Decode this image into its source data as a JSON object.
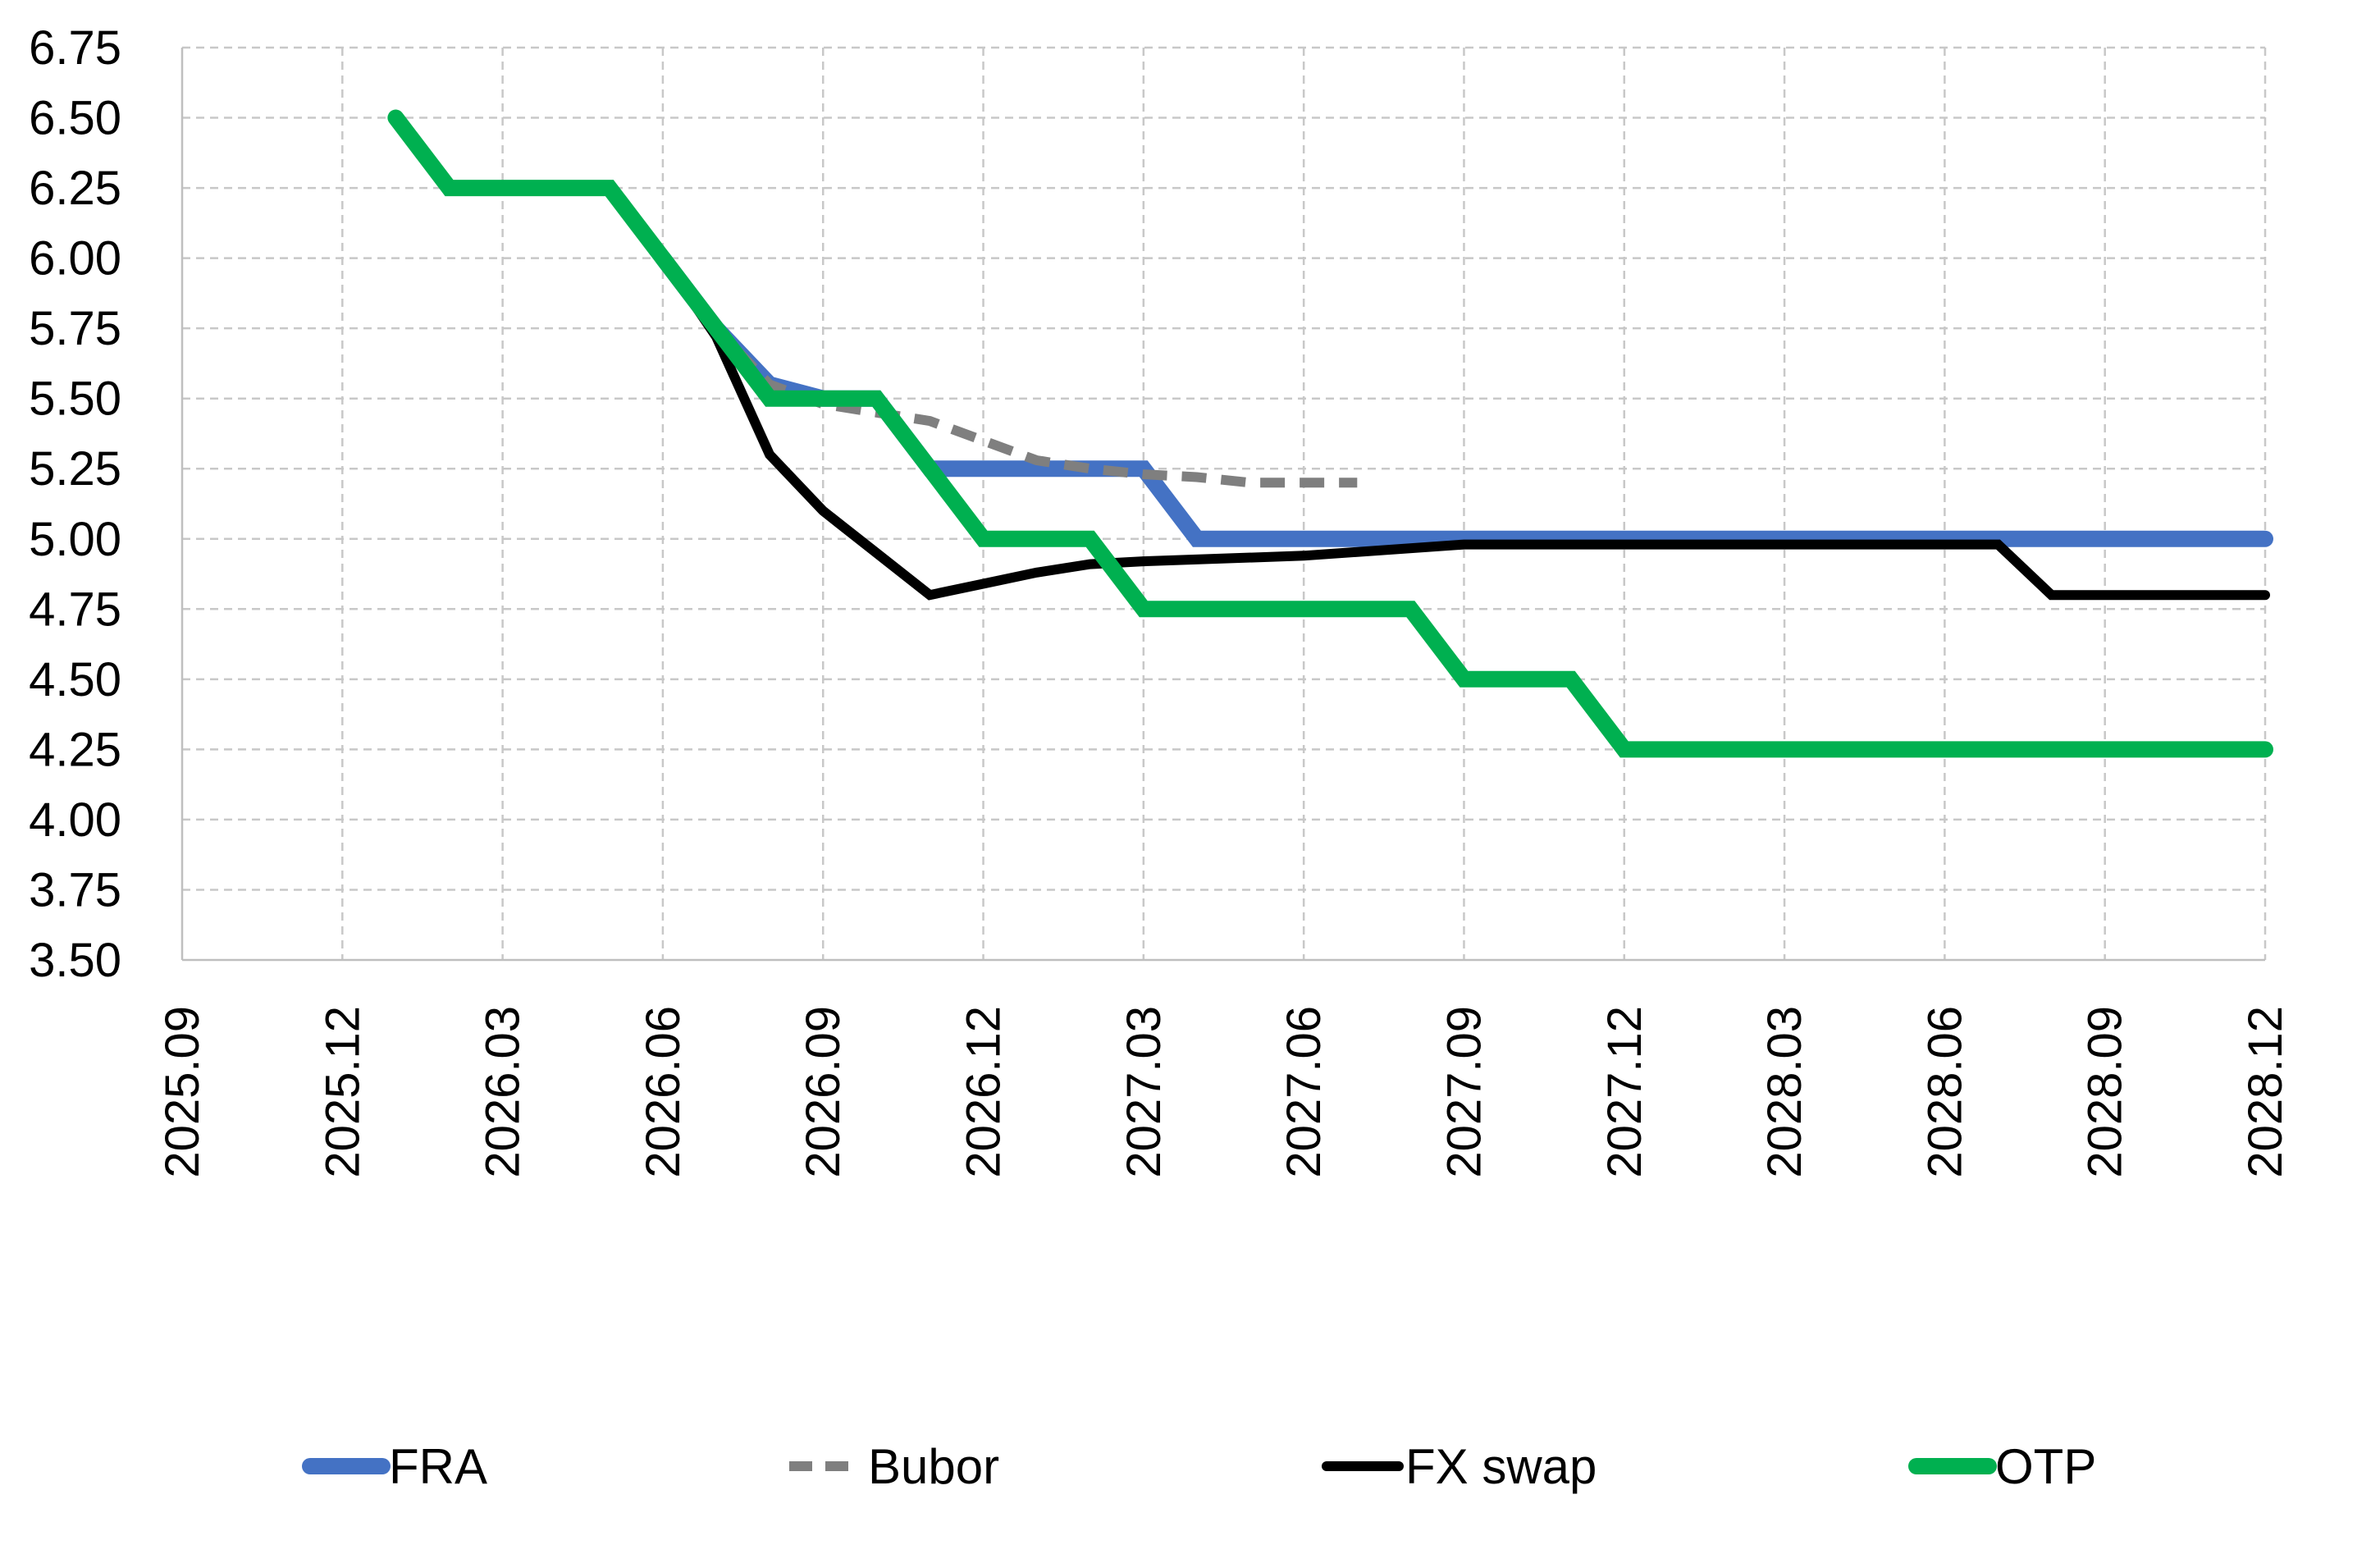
{
  "chart_data": {
    "type": "line",
    "title": "",
    "xlabel": "",
    "ylabel": "",
    "ylim": [
      3.5,
      6.75
    ],
    "yticks": [
      "3.50",
      "3.75",
      "4.00",
      "4.25",
      "4.50",
      "4.75",
      "5.00",
      "5.25",
      "5.50",
      "5.75",
      "6.00",
      "6.25",
      "6.50",
      "6.75"
    ],
    "xlim": [
      "2025.09",
      "2028.12"
    ],
    "xticks": [
      "2025.09",
      "2025.12",
      "2026.03",
      "2026.06",
      "2026.09",
      "2026.12",
      "2027.03",
      "2027.06",
      "2027.09",
      "2027.12",
      "2028.03",
      "2028.06",
      "2028.09",
      "2028.12"
    ],
    "grid": true,
    "legend_position": "bottom",
    "series": [
      {
        "name": "FRA",
        "color": "#4472C4",
        "style": "solid",
        "points": [
          [
            "2026.06",
            6.0
          ],
          [
            "2026.07",
            5.75
          ],
          [
            "2026.08",
            5.55
          ],
          [
            "2026.09",
            5.5
          ],
          [
            "2026.10",
            5.5
          ],
          [
            "2026.11",
            5.25
          ],
          [
            "2026.12",
            5.25
          ],
          [
            "2027.01",
            5.25
          ],
          [
            "2027.02",
            5.25
          ],
          [
            "2027.03",
            5.25
          ],
          [
            "2027.04",
            5.0
          ],
          [
            "2027.06",
            5.0
          ],
          [
            "2027.09",
            5.0
          ],
          [
            "2027.12",
            5.0
          ],
          [
            "2028.06",
            5.0
          ],
          [
            "2028.12",
            5.0
          ]
        ]
      },
      {
        "name": "Bubor",
        "color": "#7F7F7F",
        "style": "dashed",
        "points": [
          [
            "2026.06",
            6.0
          ],
          [
            "2026.07",
            5.75
          ],
          [
            "2026.08",
            5.55
          ],
          [
            "2026.09",
            5.48
          ],
          [
            "2026.10",
            5.45
          ],
          [
            "2026.11",
            5.42
          ],
          [
            "2026.12",
            5.35
          ],
          [
            "2027.01",
            5.28
          ],
          [
            "2027.02",
            5.25
          ],
          [
            "2027.03",
            5.23
          ],
          [
            "2027.04",
            5.22
          ],
          [
            "2027.05",
            5.2
          ],
          [
            "2027.06",
            5.2
          ],
          [
            "2027.07",
            5.2
          ]
        ]
      },
      {
        "name": "FX swap",
        "color": "#000000",
        "style": "solid",
        "points": [
          [
            "2026.06",
            6.0
          ],
          [
            "2026.07",
            5.72
          ],
          [
            "2026.08",
            5.3
          ],
          [
            "2026.09",
            5.1
          ],
          [
            "2026.10",
            4.95
          ],
          [
            "2026.11",
            4.8
          ],
          [
            "2026.12",
            4.84
          ],
          [
            "2027.01",
            4.88
          ],
          [
            "2027.02",
            4.91
          ],
          [
            "2027.03",
            4.92
          ],
          [
            "2027.06",
            4.94
          ],
          [
            "2027.09",
            4.98
          ],
          [
            "2028.06",
            4.98
          ],
          [
            "2028.07",
            4.98
          ],
          [
            "2028.08",
            4.8
          ],
          [
            "2028.12",
            4.8
          ]
        ]
      },
      {
        "name": "OTP",
        "color": "#00B050",
        "style": "solid",
        "points": [
          [
            "2026.01",
            6.5
          ],
          [
            "2026.02",
            6.25
          ],
          [
            "2026.03",
            6.25
          ],
          [
            "2026.04",
            6.25
          ],
          [
            "2026.05",
            6.25
          ],
          [
            "2026.06",
            6.0
          ],
          [
            "2026.07",
            5.75
          ],
          [
            "2026.08",
            5.5
          ],
          [
            "2026.09",
            5.5
          ],
          [
            "2026.10",
            5.5
          ],
          [
            "2026.11",
            5.25
          ],
          [
            "2026.12",
            5.0
          ],
          [
            "2027.01",
            5.0
          ],
          [
            "2027.02",
            5.0
          ],
          [
            "2027.03",
            4.75
          ],
          [
            "2027.06",
            4.75
          ],
          [
            "2027.08",
            4.75
          ],
          [
            "2027.09",
            4.5
          ],
          [
            "2027.10",
            4.5
          ],
          [
            "2027.11",
            4.5
          ],
          [
            "2027.12",
            4.25
          ],
          [
            "2028.06",
            4.25
          ],
          [
            "2028.12",
            4.25
          ]
        ]
      }
    ]
  }
}
